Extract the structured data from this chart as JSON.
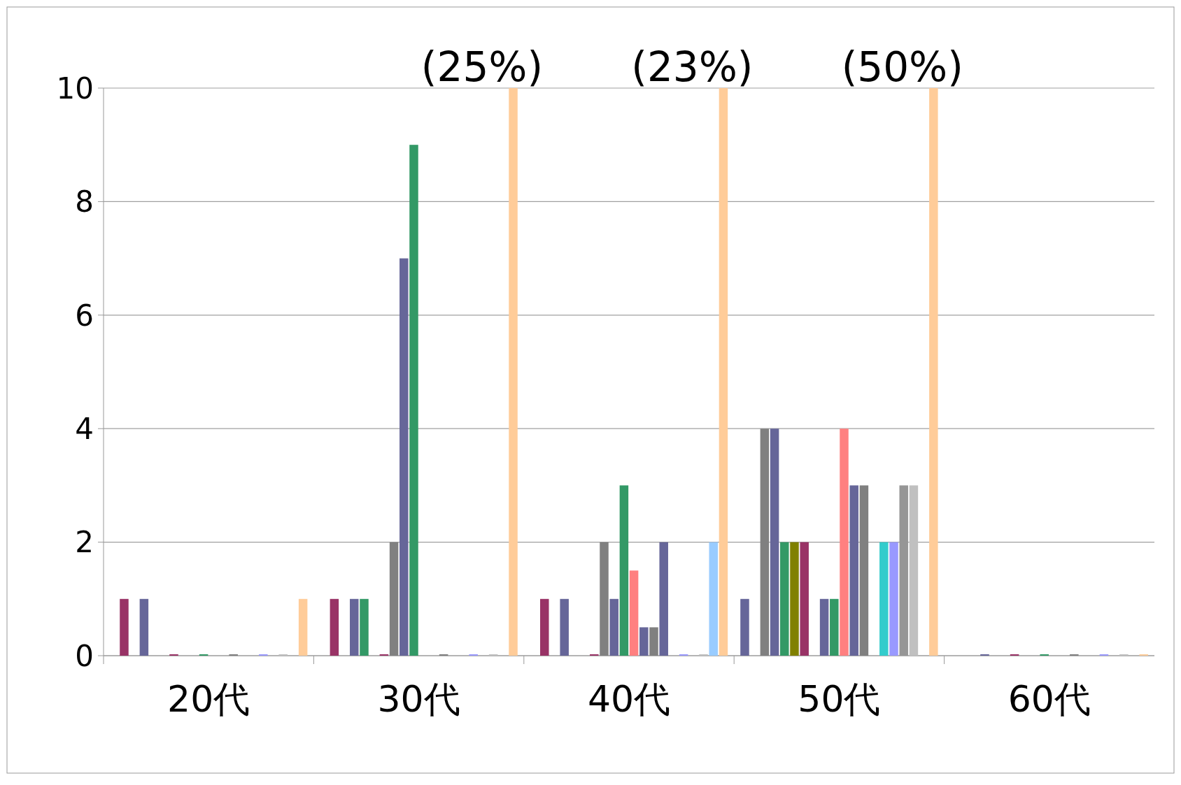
{
  "chart_data": {
    "type": "bar",
    "categories": [
      "20代",
      "30代",
      "40代",
      "50代",
      "60代"
    ],
    "ylim": [
      0,
      10
    ],
    "yticks": [
      0,
      2,
      4,
      6,
      8,
      10
    ],
    "grid": "y",
    "annotations": [
      "(25%)",
      "(23%)",
      "(50%)"
    ],
    "series": [
      {
        "color": "#666699",
        "values": [
          null,
          null,
          null,
          1,
          null
        ]
      },
      {
        "color": "#993366",
        "values": [
          1,
          1,
          1,
          null,
          null
        ]
      },
      {
        "color": "#808080",
        "values": [
          null,
          null,
          null,
          4,
          null
        ]
      },
      {
        "color": "#666699",
        "values": [
          1,
          1,
          1,
          4,
          0
        ]
      },
      {
        "color": "#339966",
        "values": [
          null,
          1,
          null,
          2,
          null
        ]
      },
      {
        "color": "#808000",
        "values": [
          null,
          null,
          null,
          2,
          null
        ]
      },
      {
        "color": "#993366",
        "values": [
          0,
          0,
          0,
          2,
          0
        ]
      },
      {
        "color": "#808080",
        "values": [
          null,
          2,
          2,
          null,
          null
        ]
      },
      {
        "color": "#666699",
        "values": [
          null,
          7,
          1,
          1,
          null
        ]
      },
      {
        "color": "#339966",
        "values": [
          0,
          9,
          3,
          1,
          0
        ]
      },
      {
        "color": "#ff8080",
        "values": [
          null,
          null,
          1.5,
          4,
          null
        ]
      },
      {
        "color": "#666699",
        "values": [
          null,
          null,
          0.5,
          3,
          null
        ]
      },
      {
        "color": "#808080",
        "values": [
          0,
          0,
          0.5,
          3,
          0
        ]
      },
      {
        "color": "#666699",
        "values": [
          null,
          null,
          2,
          null,
          null
        ]
      },
      {
        "color": "#33cccc",
        "values": [
          null,
          null,
          null,
          2,
          null
        ]
      },
      {
        "color": "#9999ff",
        "values": [
          0,
          0,
          0,
          2,
          0
        ]
      },
      {
        "color": "#969696",
        "values": [
          null,
          null,
          null,
          3,
          null
        ]
      },
      {
        "color": "#c0c0c0",
        "values": [
          0,
          0,
          0,
          3,
          0
        ]
      },
      {
        "color": "#99ccff",
        "values": [
          null,
          null,
          2,
          null,
          null
        ]
      },
      {
        "color": "#ffcc99",
        "values": [
          1,
          10,
          10,
          10,
          0
        ]
      }
    ]
  }
}
